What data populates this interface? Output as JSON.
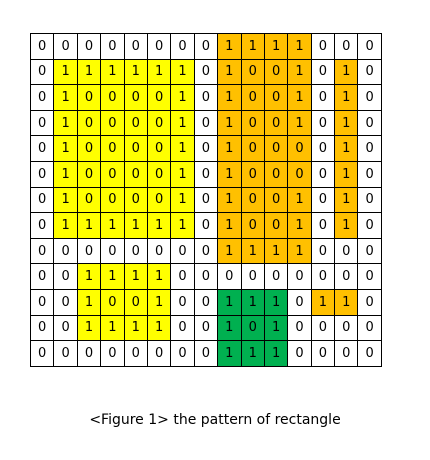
{
  "grid": {
    "values": [
      [
        0,
        0,
        0,
        0,
        0,
        0,
        0,
        0,
        1,
        1,
        1,
        1,
        0,
        0,
        0
      ],
      [
        0,
        1,
        1,
        1,
        1,
        1,
        1,
        0,
        1,
        0,
        0,
        1,
        0,
        1,
        0
      ],
      [
        0,
        1,
        0,
        0,
        0,
        0,
        1,
        0,
        1,
        0,
        0,
        1,
        0,
        1,
        0
      ],
      [
        0,
        1,
        0,
        0,
        0,
        0,
        1,
        0,
        1,
        0,
        0,
        1,
        0,
        1,
        0
      ],
      [
        0,
        1,
        0,
        0,
        0,
        0,
        1,
        0,
        1,
        0,
        0,
        0,
        0,
        1,
        0
      ],
      [
        0,
        1,
        0,
        0,
        0,
        0,
        1,
        0,
        1,
        0,
        0,
        0,
        0,
        1,
        0
      ],
      [
        0,
        1,
        0,
        0,
        0,
        0,
        1,
        0,
        1,
        0,
        0,
        1,
        0,
        1,
        0
      ],
      [
        0,
        1,
        1,
        1,
        1,
        1,
        1,
        0,
        1,
        0,
        0,
        1,
        0,
        1,
        0
      ],
      [
        0,
        0,
        0,
        0,
        0,
        0,
        0,
        0,
        1,
        1,
        1,
        1,
        0,
        0,
        0
      ],
      [
        0,
        0,
        1,
        1,
        1,
        1,
        0,
        0,
        0,
        0,
        0,
        0,
        0,
        0,
        0
      ],
      [
        0,
        0,
        1,
        0,
        0,
        1,
        0,
        0,
        1,
        1,
        1,
        0,
        1,
        1,
        0
      ],
      [
        0,
        0,
        1,
        1,
        1,
        1,
        0,
        0,
        1,
        0,
        1,
        0,
        0,
        0,
        0
      ],
      [
        0,
        0,
        0,
        0,
        0,
        0,
        0,
        0,
        1,
        1,
        1,
        0,
        0,
        0,
        0
      ]
    ],
    "colors": [
      "wwwwwwwwoooowww",
      "wyyyyyywoooowow",
      "wyyyyyywoooowow",
      "wyyyyyywoooowow",
      "wyyyyyywoooowow",
      "wyyyyyywoooowow",
      "wyyyyyywoooowow",
      "wyyyyyywoooowow",
      "wwwwwwwwoooowww",
      "wwyyyywwwwwwwww",
      "wwyyyywwgggwoow",
      "wwyyyywwgggwwww",
      "wwwwwwwwgggwwww"
    ],
    "palette": {
      "w": "#ffffff",
      "y": "#ffff00",
      "o": "#ffc000",
      "g": "#00b050"
    }
  },
  "caption": "<Figure 1> the pattern of rectangle"
}
